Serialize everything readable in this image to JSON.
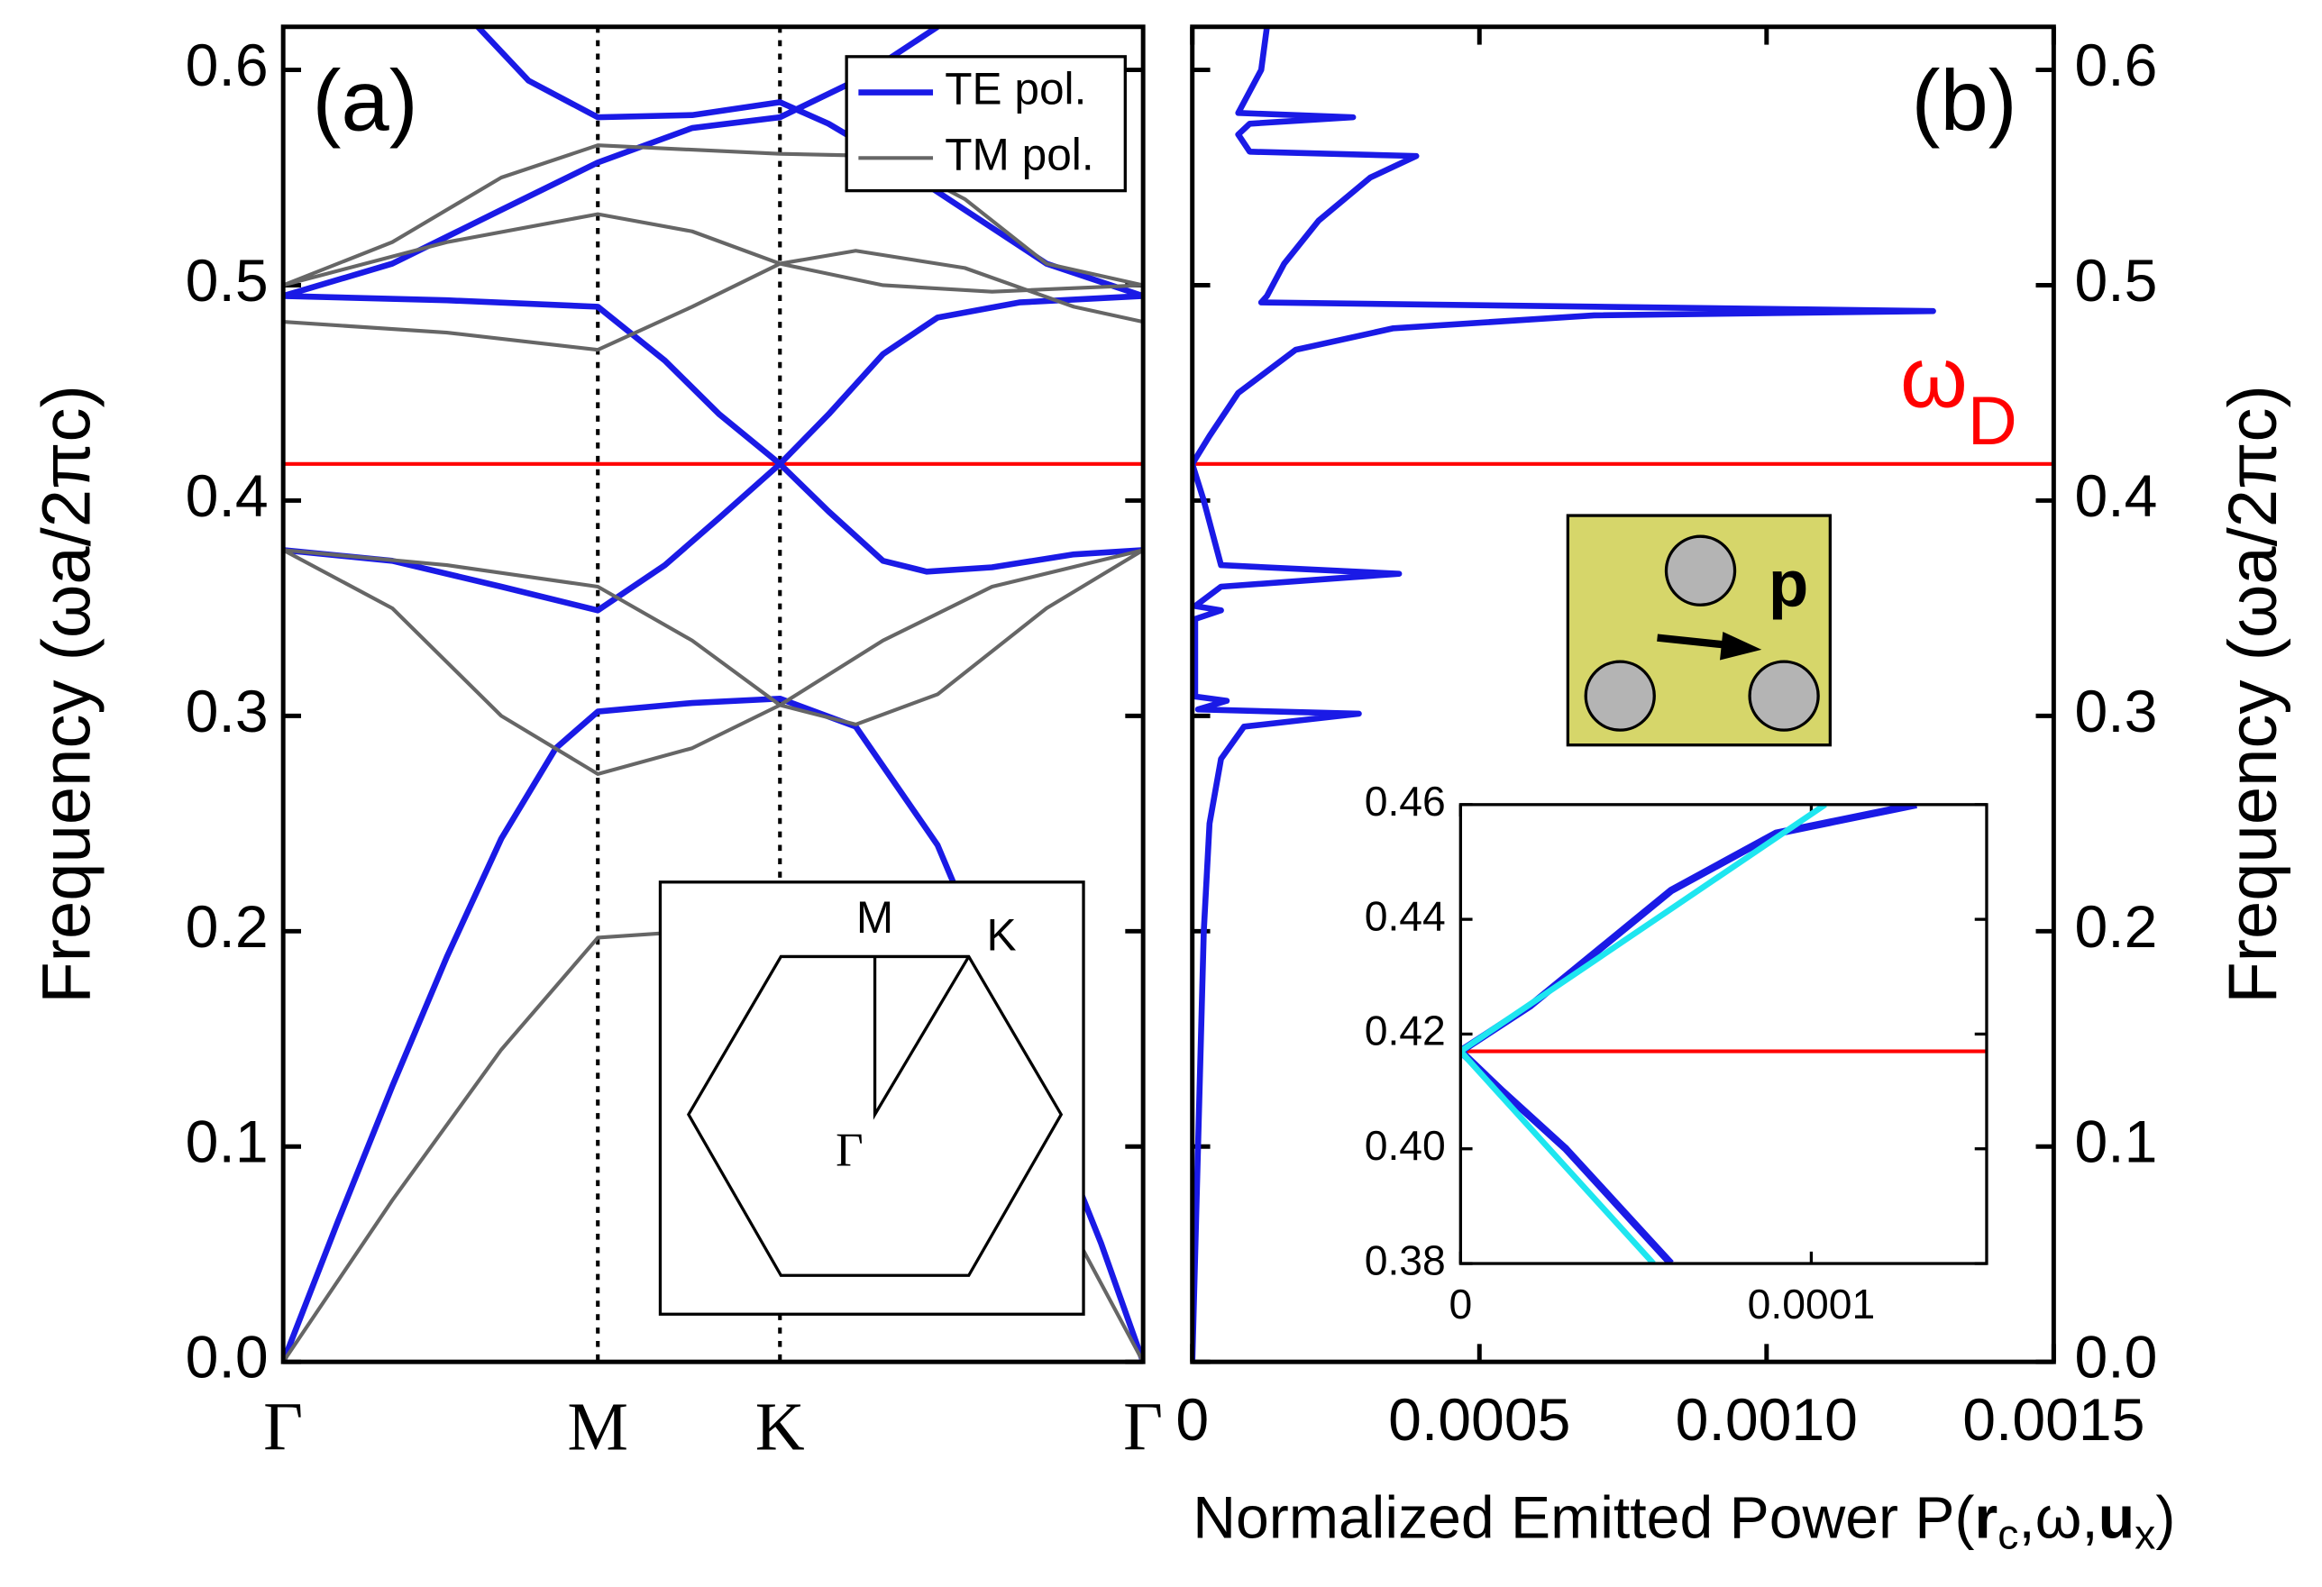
{
  "chart_data": [
    {
      "type": "line",
      "panel_label": "(a)",
      "ylabel": "Frequency (ωa/2πc)",
      "yaxis_side": "left",
      "xlim": [
        0,
        1.577
      ],
      "ylim": [
        0,
        0.62
      ],
      "xticks": [
        {
          "value": 0,
          "label": "Γ"
        },
        {
          "value": 0.577,
          "label": "M"
        },
        {
          "value": 0.911,
          "label": "K"
        },
        {
          "value": 1.577,
          "label": "Γ"
        }
      ],
      "xgrid": "dotted",
      "yticks": [
        {
          "value": 0,
          "label": "0.0"
        },
        0.1,
        0.2,
        0.3,
        0.4,
        0.5,
        0.6
      ],
      "hline": 0.417,
      "hline_color": "#ff0000",
      "legend": "upper right",
      "series": [
        {
          "name": "TE pol.",
          "color": "#1a1ae6",
          "linewidth": 4,
          "x": [
            0,
            0.1,
            0.2,
            0.3,
            0.4,
            0.5,
            0.577,
            0.75,
            0.911,
            1.05,
            1.2,
            1.35,
            1.5,
            1.577,
            null,
            0,
            0.2,
            0.4,
            0.577,
            0.7,
            0.8,
            0.911,
            1.0,
            1.1,
            1.18,
            1.3,
            1.45,
            1.577,
            null,
            0,
            0.3,
            0.577,
            0.7,
            0.8,
            0.911,
            1.0,
            1.1,
            1.2,
            1.35,
            1.577,
            null,
            0,
            0.2,
            0.4,
            0.577,
            0.75,
            0.911,
            1.05,
            1.2,
            null,
            0.357,
            0.45,
            0.577,
            0.75,
            0.911,
            1.0,
            1.1,
            1.25,
            1.4,
            1.577
          ],
          "values": [
            0,
            0.065,
            0.128,
            0.188,
            0.243,
            0.285,
            0.302,
            0.306,
            0.308,
            0.295,
            0.24,
            0.15,
            0.055,
            0,
            null,
            0.377,
            0.372,
            0.36,
            0.349,
            0.37,
            0.392,
            0.417,
            0.395,
            0.372,
            0.367,
            0.369,
            0.375,
            0.377,
            null,
            0.495,
            0.493,
            0.49,
            0.465,
            0.44,
            0.417,
            0.44,
            0.468,
            0.485,
            0.492,
            0.495,
            null,
            0.495,
            0.51,
            0.535,
            0.557,
            0.573,
            0.578,
            0.595,
            0.62,
            null,
            0.62,
            0.595,
            0.578,
            0.579,
            0.585,
            0.575,
            0.56,
            0.535,
            0.51,
            0.495
          ]
        },
        {
          "name": "TM pol.",
          "color": "#666666",
          "linewidth": 2.5,
          "x": [
            0,
            0.2,
            0.4,
            0.577,
            0.75,
            0.911,
            1.2,
            1.45,
            1.577,
            null,
            0,
            0.2,
            0.4,
            0.577,
            0.75,
            0.911,
            1.1,
            1.3,
            1.577,
            null,
            0,
            0.3,
            0.577,
            0.75,
            0.911,
            1.05,
            1.2,
            1.4,
            1.577,
            null,
            0,
            0.3,
            0.577,
            0.75,
            0.911,
            1.05,
            1.25,
            1.45,
            1.577,
            null,
            0,
            0.3,
            0.577,
            0.75,
            0.911,
            1.1,
            1.3,
            1.577,
            null,
            0,
            0.2,
            0.4,
            0.577,
            0.911,
            1.1,
            1.25,
            1.4,
            1.577
          ],
          "values": [
            0,
            0.075,
            0.145,
            0.197,
            0.2,
            0.205,
            0.16,
            0.06,
            0,
            null,
            0.377,
            0.35,
            0.3,
            0.273,
            0.285,
            0.305,
            0.335,
            0.36,
            0.377,
            null,
            0.377,
            0.37,
            0.36,
            0.335,
            0.305,
            0.296,
            0.31,
            0.35,
            0.377,
            null,
            0.483,
            0.478,
            0.47,
            0.49,
            0.51,
            0.516,
            0.508,
            0.49,
            0.483,
            null,
            0.5,
            0.52,
            0.533,
            0.525,
            0.51,
            0.5,
            0.497,
            0.5,
            null,
            0.5,
            0.52,
            0.55,
            0.565,
            0.561,
            0.56,
            0.54,
            0.51,
            0.5
          ]
        }
      ],
      "inset_labels": [
        "M",
        "K",
        "Γ"
      ]
    },
    {
      "type": "line",
      "orientation": "horizontal",
      "panel_label": "(b)",
      "ylabel": "Frequency (ωa/2πc)",
      "yaxis_side": "right",
      "xlabel": [
        "Normalized Emitted Power P(",
        "r",
        "c",
        ",ω,",
        "u",
        "x",
        ")"
      ],
      "xlim": [
        0,
        0.0015
      ],
      "ylim": [
        0,
        0.62
      ],
      "xticks": [
        0,
        0.0005,
        {
          "value": 0.001,
          "label": "0.0010"
        },
        0.0015
      ],
      "yticks": [
        {
          "value": 0,
          "label": "0.0"
        },
        0.1,
        0.2,
        0.3,
        0.4,
        0.5,
        0.6
      ],
      "hline": 0.417,
      "hline_color": "#ff0000",
      "annotation": [
        "ω",
        "D"
      ],
      "annotation_color": "#ff0000",
      "series": [
        {
          "color": "#1a1ae6",
          "linewidth": 4,
          "frequency": [
            0,
            0.05,
            0.1,
            0.15,
            0.2,
            0.25,
            0.28,
            0.295,
            0.301,
            0.303,
            0.307,
            0.309,
            0.345,
            0.349,
            0.351,
            0.36,
            0.366,
            0.37,
            0.38,
            0.4,
            0.417,
            0.43,
            0.45,
            0.47,
            0.48,
            0.486,
            0.488,
            0.492,
            0.495,
            0.51,
            0.53,
            0.55,
            0.56,
            0.562,
            0.57,
            0.575,
            0.578,
            0.58,
            0.6,
            0.62
          ],
          "values": [
            0,
            5e-06,
            1e-05,
            1.5e-05,
            2e-05,
            3e-05,
            5e-05,
            9e-05,
            0.00029,
            1e-05,
            6e-05,
            5e-06,
            5e-06,
            5e-05,
            5e-06,
            5e-05,
            0.00036,
            5e-05,
            4e-05,
            2e-05,
            0,
            3e-05,
            8e-05,
            0.00018,
            0.00035,
            0.0007,
            0.00129,
            0.00012,
            0.00013,
            0.00016,
            0.00022,
            0.00031,
            0.00039,
            0.0001,
            8e-05,
            0.0001,
            0.00028,
            8e-05,
            0.00012,
            0.00013
          ]
        }
      ],
      "inset_label": "p"
    },
    {
      "type": "line",
      "orientation": "horizontal",
      "xlim": [
        0,
        0.00015
      ],
      "ylim": [
        0.38,
        0.46
      ],
      "xticks": [
        0,
        0.0001
      ],
      "yticks": [
        0.38,
        {
          "value": 0.4,
          "label": "0.40"
        },
        0.42,
        0.44,
        0.46
      ],
      "hline": 0.417,
      "hline_color": "#ff0000",
      "series": [
        {
          "color": "#1a1ae6",
          "linewidth": 5,
          "frequency": [
            0.38,
            0.39,
            0.4,
            0.41,
            0.417,
            0.425,
            0.435,
            0.445,
            0.455,
            0.46
          ],
          "values": [
            6e-05,
            4.5e-05,
            3e-05,
            1.2e-05,
            0,
            2e-05,
            4e-05,
            6e-05,
            9e-05,
            0.00013
          ]
        },
        {
          "color": "#1ee6f0",
          "linewidth": 4,
          "frequency": [
            0.38,
            0.417,
            0.46
          ],
          "values": [
            5.5e-05,
            0,
            0.000104
          ]
        }
      ]
    }
  ]
}
